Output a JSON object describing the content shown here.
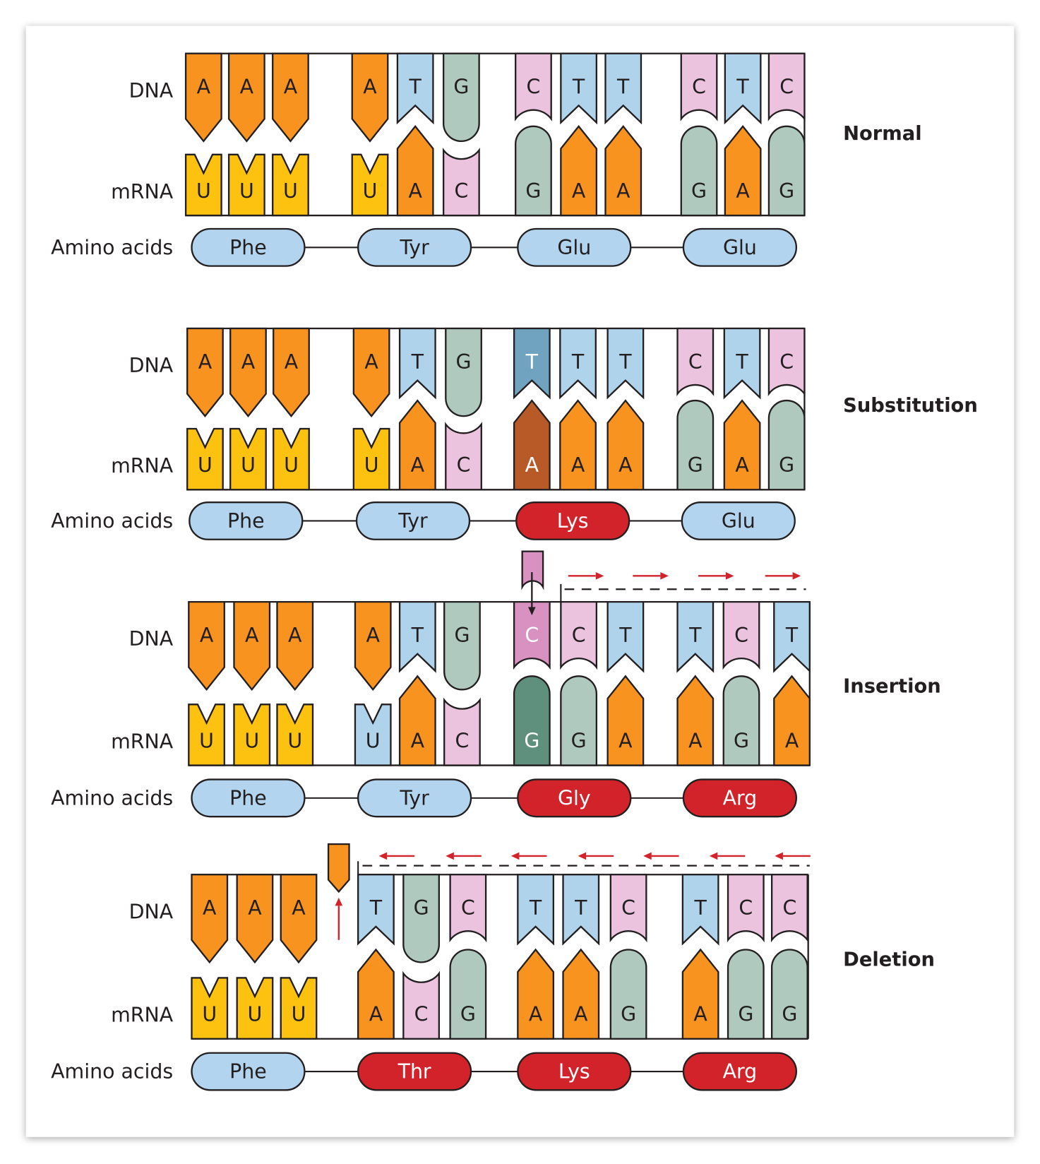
{
  "labels": {
    "dna": "DNA",
    "mrna": "mRNA",
    "amino_acids": "Amino acids"
  },
  "colors": {
    "A": "#f7931e",
    "T": "#b0d3ec",
    "G": "#afc9bf",
    "C": "#ebc3df",
    "U": "#fdc210",
    "outline": "#231f20",
    "amino_normal": "#b3d4ee",
    "amino_mutated": "#d2232a",
    "arrow": "#d2232a"
  },
  "sections": [
    {
      "title": "Normal",
      "dna": [
        "A",
        "A",
        "A",
        "A",
        "T",
        "G",
        "C",
        "T",
        "T",
        "C",
        "T",
        "C"
      ],
      "mrna": [
        "U",
        "U",
        "U",
        "U",
        "A",
        "C",
        "G",
        "A",
        "A",
        "G",
        "A",
        "G"
      ],
      "amino_acids": [
        {
          "name": "Phe",
          "mutated": false
        },
        {
          "name": "Tyr",
          "mutated": false
        },
        {
          "name": "Glu",
          "mutated": false
        },
        {
          "name": "Glu",
          "mutated": false
        }
      ],
      "highlights": []
    },
    {
      "title": "Substitution",
      "dna": [
        "A",
        "A",
        "A",
        "A",
        "T",
        "G",
        "T",
        "T",
        "T",
        "C",
        "T",
        "C"
      ],
      "mrna": [
        "U",
        "U",
        "U",
        "U",
        "A",
        "C",
        "A",
        "A",
        "A",
        "G",
        "A",
        "G"
      ],
      "amino_acids": [
        {
          "name": "Phe",
          "mutated": false
        },
        {
          "name": "Tyr",
          "mutated": false
        },
        {
          "name": "Lys",
          "mutated": true
        },
        {
          "name": "Glu",
          "mutated": false
        }
      ],
      "highlights": [
        {
          "strand": "dna",
          "index": 6,
          "color": "#6fa3c0",
          "text_color": "#ffffff"
        },
        {
          "strand": "mrna",
          "index": 6,
          "color": "#b85a28",
          "text_color": "#ffffff"
        }
      ]
    },
    {
      "title": "Insertion",
      "dna": [
        "A",
        "A",
        "A",
        "A",
        "T",
        "G",
        "C",
        "C",
        "T",
        "T",
        "C",
        "T"
      ],
      "mrna": [
        "U",
        "U",
        "U",
        "U",
        "A",
        "C",
        "G",
        "G",
        "A",
        "A",
        "G",
        "A"
      ],
      "amino_acids": [
        {
          "name": "Phe",
          "mutated": false
        },
        {
          "name": "Tyr",
          "mutated": false
        },
        {
          "name": "Gly",
          "mutated": true
        },
        {
          "name": "Arg",
          "mutated": true
        }
      ],
      "highlights": [
        {
          "strand": "mrna",
          "index": 3,
          "color": "#b0d3ec",
          "text_color": "#231f20"
        },
        {
          "strand": "dna",
          "index": 6,
          "color": "#d891c0",
          "text_color": "#ffffff"
        },
        {
          "strand": "mrna",
          "index": 6,
          "color": "#5f8f7d",
          "text_color": "#ffffff"
        }
      ],
      "inserted_base": {
        "base": "C",
        "color": "#d891c0"
      },
      "shift_direction": "right"
    },
    {
      "title": "Deletion",
      "dna": [
        "A",
        "A",
        "A",
        "T",
        "G",
        "C",
        "T",
        "T",
        "C",
        "T",
        "C",
        "C"
      ],
      "mrna": [
        "U",
        "U",
        "U",
        "A",
        "C",
        "G",
        "A",
        "A",
        "G",
        "A",
        "G",
        "G"
      ],
      "amino_acids": [
        {
          "name": "Phe",
          "mutated": false
        },
        {
          "name": "Thr",
          "mutated": true
        },
        {
          "name": "Lys",
          "mutated": true
        },
        {
          "name": "Arg",
          "mutated": true
        }
      ],
      "highlights": [],
      "deleted_base": {
        "base": "A",
        "color": "#f7931e"
      },
      "shift_direction": "left"
    }
  ]
}
